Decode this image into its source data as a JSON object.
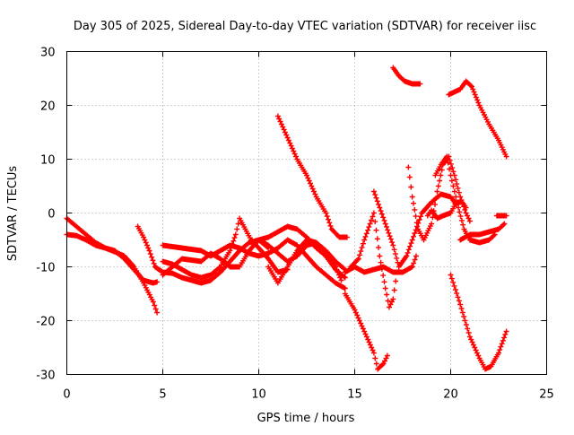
{
  "chart_data": {
    "type": "scatter",
    "title": "Day 305 of 2025, Sidereal Day-to-day VTEC variation (SDTVAR) for receiver iisc",
    "xlabel": "GPS time / hours",
    "ylabel": "SDTVAR / TECUs",
    "xlim": [
      0,
      25
    ],
    "ylim": [
      -30,
      30
    ],
    "x_ticks": [
      "0",
      "5",
      "10",
      "15",
      "20",
      "25"
    ],
    "y_ticks": [
      "-30",
      "-20",
      "-10",
      "0",
      "10",
      "20",
      "30"
    ],
    "grid": true,
    "marker": "+",
    "color": "#ff0000",
    "series": [
      {
        "name": "s1",
        "points": [
          [
            0.0,
            -1.0
          ],
          [
            0.5,
            -2.5
          ],
          [
            1.0,
            -4.0
          ],
          [
            1.5,
            -5.5
          ],
          [
            2.0,
            -6.5
          ],
          [
            2.5,
            -7.2
          ],
          [
            3.0,
            -8.0
          ],
          [
            3.5,
            -10.0
          ],
          [
            4.0,
            -13.0
          ],
          [
            4.5,
            -16.5
          ],
          [
            4.7,
            -18.5
          ]
        ]
      },
      {
        "name": "s2",
        "points": [
          [
            0.0,
            -4.0
          ],
          [
            0.5,
            -4.2
          ],
          [
            1.0,
            -5.0
          ],
          [
            1.5,
            -6.0
          ],
          [
            2.0,
            -6.5
          ],
          [
            2.5,
            -7.0
          ],
          [
            3.0,
            -8.5
          ],
          [
            3.5,
            -10.5
          ],
          [
            4.0,
            -12.5
          ],
          [
            4.5,
            -13.0
          ],
          [
            4.7,
            -12.8
          ]
        ]
      },
      {
        "name": "s3",
        "points": [
          [
            3.7,
            -2.5
          ],
          [
            4.0,
            -4.5
          ],
          [
            4.3,
            -7.0
          ],
          [
            4.6,
            -10.0
          ],
          [
            5.0,
            -11.0
          ],
          [
            5.5,
            -11.2
          ],
          [
            6.0,
            -12.0
          ],
          [
            6.5,
            -12.5
          ],
          [
            7.0,
            -13.0
          ],
          [
            7.5,
            -12.5
          ],
          [
            8.0,
            -11.0
          ],
          [
            8.5,
            -9.0
          ],
          [
            9.0,
            -7.0
          ],
          [
            9.5,
            -5.5
          ],
          [
            10.0,
            -5.0
          ],
          [
            10.5,
            -6.5
          ]
        ]
      },
      {
        "name": "s4",
        "points": [
          [
            5.0,
            -9.0
          ],
          [
            5.5,
            -9.5
          ],
          [
            6.0,
            -10.5
          ],
          [
            6.5,
            -11.5
          ],
          [
            7.0,
            -12.0
          ],
          [
            7.5,
            -11.5
          ],
          [
            8.0,
            -10.0
          ],
          [
            8.5,
            -7.0
          ],
          [
            8.8,
            -4.0
          ],
          [
            9.0,
            -1.0
          ],
          [
            9.3,
            -3.0
          ],
          [
            9.6,
            -5.0
          ],
          [
            10.0,
            -6.5
          ],
          [
            10.5,
            -8.5
          ],
          [
            11.0,
            -11.0
          ],
          [
            11.5,
            -10.5
          ]
        ]
      },
      {
        "name": "s5",
        "points": [
          [
            5.0,
            -6.0
          ],
          [
            6.0,
            -6.5
          ],
          [
            7.0,
            -7.0
          ],
          [
            7.5,
            -8.0
          ],
          [
            8.0,
            -7.0
          ],
          [
            8.5,
            -6.0
          ],
          [
            9.0,
            -6.5
          ],
          [
            9.5,
            -7.5
          ],
          [
            10.0,
            -8.0
          ],
          [
            10.5,
            -7.5
          ],
          [
            11.0,
            -6.5
          ],
          [
            11.5,
            -5.0
          ],
          [
            12.0,
            -6.0
          ],
          [
            12.5,
            -8.0
          ],
          [
            13.0,
            -10.0
          ],
          [
            13.5,
            -11.5
          ],
          [
            14.0,
            -13.0
          ],
          [
            14.5,
            -14.0
          ]
        ]
      },
      {
        "name": "s6",
        "points": [
          [
            5.0,
            -11.5
          ],
          [
            6.0,
            -8.5
          ],
          [
            7.0,
            -9.0
          ],
          [
            7.5,
            -7.5
          ],
          [
            8.0,
            -8.5
          ],
          [
            8.5,
            -10.0
          ],
          [
            9.0,
            -10.0
          ],
          [
            9.5,
            -7.0
          ],
          [
            10.0,
            -5.0
          ],
          [
            10.5,
            -4.5
          ],
          [
            11.0,
            -3.5
          ],
          [
            11.5,
            -2.5
          ],
          [
            12.0,
            -3.0
          ],
          [
            12.5,
            -4.5
          ],
          [
            13.0,
            -6.5
          ],
          [
            13.5,
            -8.0
          ],
          [
            14.0,
            -10.0
          ],
          [
            14.3,
            -12.5
          ]
        ]
      },
      {
        "name": "s7",
        "points": [
          [
            10.0,
            -5.0
          ],
          [
            10.5,
            -6.0
          ],
          [
            11.0,
            -7.5
          ],
          [
            11.5,
            -9.0
          ],
          [
            12.0,
            -8.0
          ],
          [
            12.5,
            -6.0
          ],
          [
            13.0,
            -5.5
          ],
          [
            13.5,
            -7.0
          ],
          [
            14.0,
            -9.0
          ],
          [
            14.5,
            -10.5
          ]
        ]
      },
      {
        "name": "s8",
        "points": [
          [
            10.5,
            -10.0
          ],
          [
            11.0,
            -13.0
          ],
          [
            11.5,
            -10.0
          ],
          [
            12.0,
            -7.0
          ],
          [
            12.5,
            -5.0
          ],
          [
            13.0,
            -5.5
          ],
          [
            13.5,
            -8.0
          ],
          [
            14.0,
            -10.5
          ],
          [
            14.5,
            -12.0
          ]
        ]
      },
      {
        "name": "s9",
        "points": [
          [
            11.0,
            18.0
          ],
          [
            11.5,
            14.0
          ],
          [
            12.0,
            10.0
          ],
          [
            12.5,
            7.0
          ],
          [
            13.0,
            3.0
          ],
          [
            13.5,
            0.0
          ],
          [
            13.8,
            -3.0
          ],
          [
            14.2,
            -4.5
          ],
          [
            14.6,
            -4.5
          ]
        ]
      },
      {
        "name": "s10",
        "points": [
          [
            14.5,
            -15.0
          ],
          [
            15.0,
            -18.0
          ],
          [
            15.5,
            -22.0
          ],
          [
            16.0,
            -26.0
          ],
          [
            16.2,
            -29.0
          ],
          [
            16.5,
            -28.0
          ],
          [
            16.7,
            -26.5
          ]
        ]
      },
      {
        "name": "s11",
        "points": [
          [
            14.8,
            -10.0
          ],
          [
            15.2,
            -8.5
          ],
          [
            15.5,
            -5.0
          ],
          [
            15.8,
            -2.0
          ],
          [
            16.0,
            0.0
          ],
          [
            16.3,
            -8.0
          ],
          [
            16.6,
            -14.0
          ],
          [
            16.8,
            -17.5
          ],
          [
            17.0,
            -16.0
          ],
          [
            17.2,
            -11.0
          ]
        ]
      },
      {
        "name": "s12",
        "points": [
          [
            14.5,
            -11.0
          ],
          [
            15.0,
            -10.0
          ],
          [
            15.5,
            -11.0
          ],
          [
            16.0,
            -10.5
          ],
          [
            16.5,
            -10.0
          ],
          [
            17.0,
            -11.0
          ],
          [
            17.5,
            -11.0
          ],
          [
            18.0,
            -10.0
          ],
          [
            18.2,
            -8.0
          ]
        ]
      },
      {
        "name": "s13",
        "points": [
          [
            16.0,
            4.0
          ],
          [
            16.3,
            1.0
          ],
          [
            16.6,
            -2.0
          ],
          [
            17.0,
            -6.0
          ],
          [
            17.3,
            -10.0
          ],
          [
            17.7,
            -8.0
          ],
          [
            18.0,
            -5.0
          ],
          [
            18.5,
            0.0
          ],
          [
            19.0,
            2.0
          ],
          [
            19.5,
            3.5
          ],
          [
            20.0,
            3.0
          ],
          [
            20.3,
            1.5
          ]
        ]
      },
      {
        "name": "s14",
        "points": [
          [
            17.8,
            8.5
          ],
          [
            18.0,
            3.0
          ],
          [
            18.3,
            -3.0
          ],
          [
            18.6,
            -5.0
          ],
          [
            19.0,
            -2.0
          ],
          [
            19.3,
            4.0
          ],
          [
            19.6,
            9.0
          ],
          [
            19.9,
            10.5
          ],
          [
            20.2,
            7.0
          ],
          [
            20.5,
            3.0
          ],
          [
            20.8,
            0.0
          ],
          [
            21.0,
            -1.5
          ]
        ]
      },
      {
        "name": "s15",
        "points": [
          [
            18.8,
            -0.5
          ],
          [
            19.0,
            0.5
          ],
          [
            19.3,
            -1.0
          ],
          [
            19.6,
            -0.5
          ],
          [
            20.0,
            0.0
          ],
          [
            20.3,
            2.0
          ],
          [
            20.6,
            2.0
          ],
          [
            20.8,
            1.0
          ]
        ]
      },
      {
        "name": "s16",
        "points": [
          [
            19.2,
            7.0
          ],
          [
            19.5,
            9.0
          ],
          [
            19.8,
            10.5
          ],
          [
            20.0,
            7.0
          ],
          [
            20.2,
            4.0
          ],
          [
            20.4,
            1.0
          ],
          [
            20.7,
            -3.0
          ],
          [
            21.0,
            -5.0
          ],
          [
            21.5,
            -5.5
          ],
          [
            22.0,
            -5.0
          ],
          [
            22.3,
            -4.0
          ]
        ]
      },
      {
        "name": "s17",
        "points": [
          [
            20.5,
            -5.0
          ],
          [
            21.0,
            -4.0
          ],
          [
            21.5,
            -4.0
          ],
          [
            22.0,
            -3.5
          ],
          [
            22.5,
            -3.0
          ],
          [
            22.8,
            -2.0
          ]
        ]
      },
      {
        "name": "s18",
        "points": [
          [
            17.0,
            27.0
          ],
          [
            17.3,
            25.5
          ],
          [
            17.6,
            24.5
          ],
          [
            18.0,
            24.0
          ],
          [
            18.4,
            24.0
          ]
        ]
      },
      {
        "name": "s19",
        "points": [
          [
            19.9,
            22.0
          ],
          [
            20.2,
            22.5
          ],
          [
            20.5,
            23.0
          ],
          [
            20.8,
            24.5
          ],
          [
            21.1,
            23.5
          ],
          [
            21.5,
            20.0
          ],
          [
            22.0,
            16.5
          ],
          [
            22.5,
            13.5
          ],
          [
            22.9,
            10.5
          ]
        ]
      },
      {
        "name": "s20",
        "points": [
          [
            20.0,
            -11.5
          ],
          [
            20.5,
            -17.0
          ],
          [
            21.0,
            -23.0
          ],
          [
            21.5,
            -27.0
          ],
          [
            21.8,
            -29.0
          ],
          [
            22.1,
            -28.5
          ],
          [
            22.5,
            -26.0
          ],
          [
            22.9,
            -22.0
          ]
        ]
      },
      {
        "name": "s21",
        "points": [
          [
            22.4,
            -0.5
          ],
          [
            22.7,
            -0.5
          ],
          [
            22.9,
            -0.5
          ]
        ]
      }
    ]
  }
}
